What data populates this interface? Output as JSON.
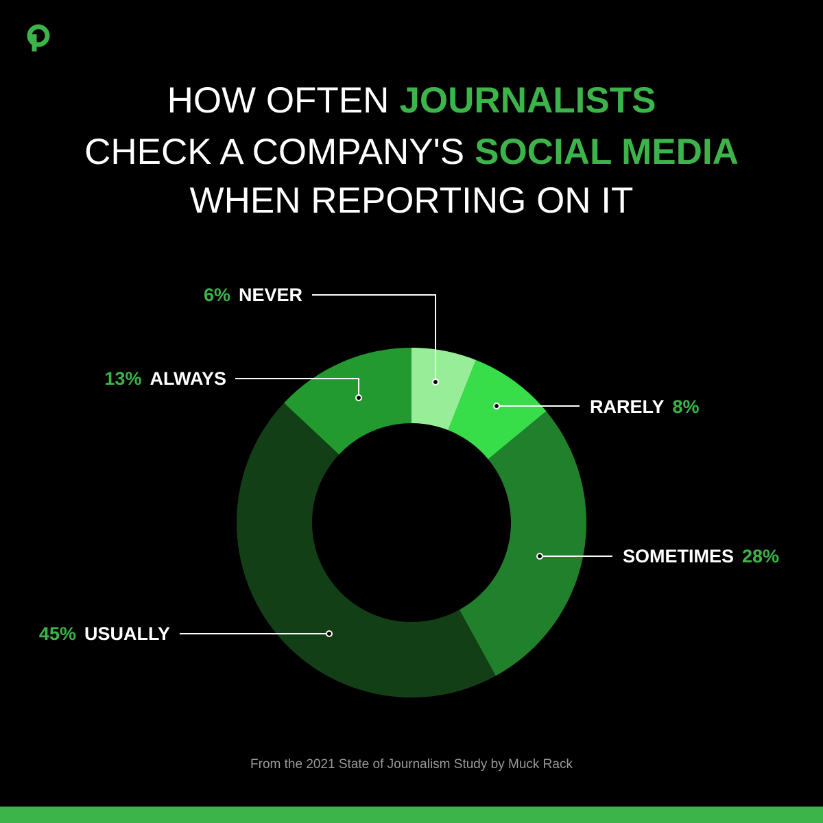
{
  "chart_data": {
    "type": "pie",
    "title_lines": [
      [
        {
          "text": "HOW OFTEN",
          "color": "#ffffff"
        },
        {
          "text": "JOURNALISTS",
          "color": "#3cb44a"
        }
      ],
      [
        {
          "text": "CHECK A COMPANY'S",
          "color": "#ffffff"
        },
        {
          "text": "SOCIAL MEDIA",
          "color": "#3cb44a"
        }
      ],
      [
        {
          "text": "WHEN REPORTING ON IT",
          "color": "#ffffff"
        }
      ]
    ],
    "categories": [
      "NEVER",
      "RARELY",
      "SOMETIMES",
      "USUALLY",
      "ALWAYS"
    ],
    "values": [
      6,
      8,
      28,
      45,
      13
    ],
    "value_labels": [
      "6%",
      "8%",
      "28%",
      "45%",
      "13%"
    ],
    "colors": [
      "#98ee98",
      "#38dd4a",
      "#21802b",
      "#133f17",
      "#239a30"
    ],
    "label_color": "#3cb44a",
    "source": "From the 2021 State of Journalism Study by Muck Rack"
  }
}
